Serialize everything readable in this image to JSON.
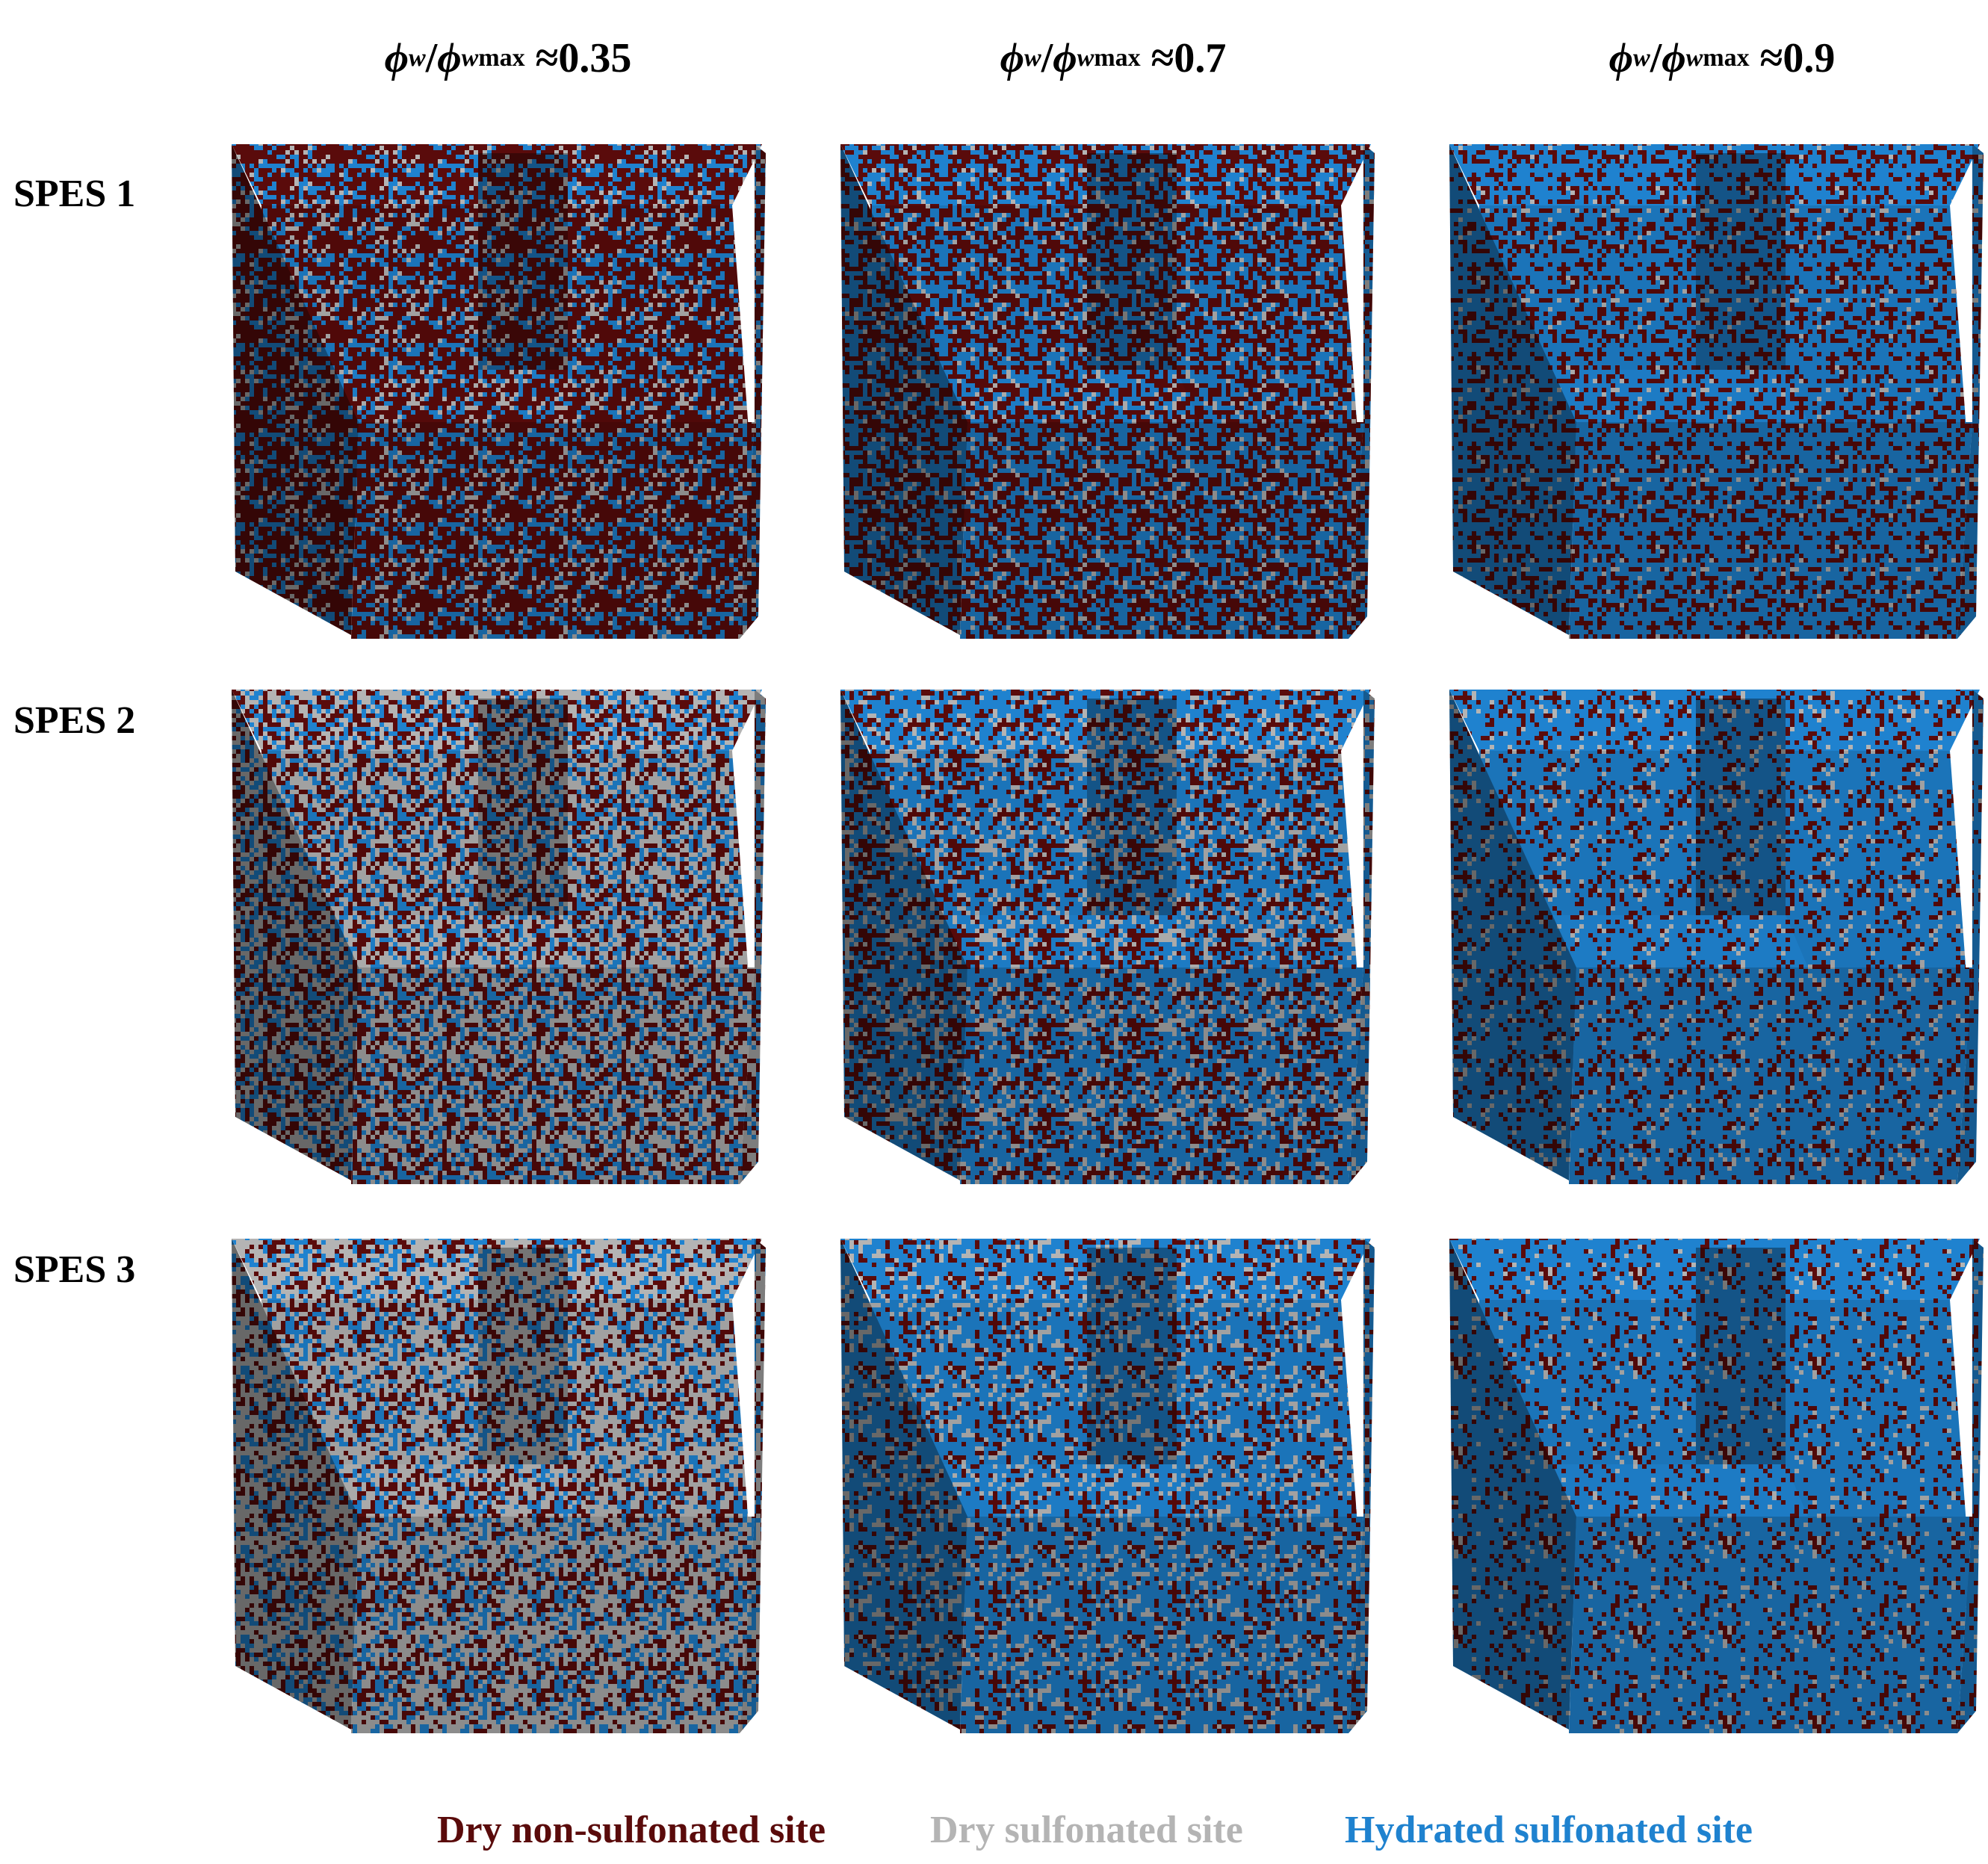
{
  "columns": [
    {
      "prefix": "≈ ",
      "value": "0.35"
    },
    {
      "prefix": "≈ ",
      "value": "0.7"
    },
    {
      "prefix": "≈ ",
      "value": "0.9"
    }
  ],
  "symbol": {
    "phi": "ϕ",
    "sub": "w",
    "slash": "/",
    "sup": "max"
  },
  "rows": [
    {
      "label": "SPES 1",
      "mix": [
        [
          0.6,
          0.13,
          0.27
        ],
        [
          0.48,
          0.07,
          0.45
        ],
        [
          0.34,
          0.04,
          0.62
        ]
      ]
    },
    {
      "label": "SPES 2",
      "mix": [
        [
          0.32,
          0.4,
          0.28
        ],
        [
          0.26,
          0.18,
          0.56
        ],
        [
          0.22,
          0.06,
          0.72
        ]
      ]
    },
    {
      "label": "SPES 3",
      "mix": [
        [
          0.25,
          0.45,
          0.3
        ],
        [
          0.2,
          0.18,
          0.62
        ],
        [
          0.15,
          0.05,
          0.8
        ]
      ]
    }
  ],
  "legend": [
    {
      "label": "Dry non-sulfonated site",
      "color": "#5a0b0b"
    },
    {
      "label": "Dry sulfonated site",
      "color": "#b4b4b4"
    },
    {
      "label": "Hydrated sulfonated site",
      "color": "#1f82cf"
    }
  ]
}
